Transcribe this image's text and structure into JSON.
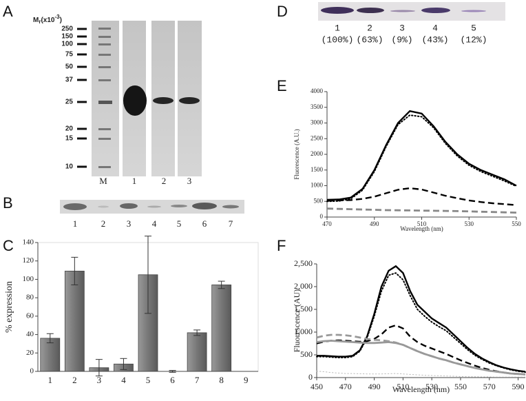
{
  "panels": [
    "A",
    "B",
    "C",
    "D",
    "E",
    "F"
  ],
  "gel_a": {
    "mr_label": {
      "main": "M",
      "sub": "r",
      "mid": "(x10",
      "sup": "-3",
      "end": ")"
    },
    "markers": [
      250,
      150,
      100,
      75,
      50,
      37,
      25,
      20,
      15,
      10
    ],
    "lanes": [
      "M",
      "1",
      "2",
      "3"
    ]
  },
  "gel_b": {
    "lanes": [
      "1",
      "2",
      "3",
      "4",
      "5",
      "6",
      "7"
    ]
  },
  "gel_d": {
    "lanes": [
      "1",
      "2",
      "3",
      "4",
      "5"
    ],
    "percents": [
      "(100%)",
      "(63%)",
      "(9%)",
      "(43%)",
      "(12%)"
    ]
  },
  "chart_data": [
    {
      "type": "bar",
      "ylabel": "% expression",
      "categories": [
        "1",
        "2",
        "3",
        "4",
        "5",
        "6",
        "7",
        "8",
        "9"
      ],
      "values": [
        36,
        109,
        4,
        8,
        105,
        0,
        42,
        94,
        null
      ],
      "errors": [
        5,
        15,
        9,
        6,
        42,
        1,
        3,
        4,
        null
      ],
      "color": "#7a7a7a",
      "ylim": [
        0,
        140
      ],
      "yticks": [
        0,
        20,
        40,
        60,
        80,
        100,
        120,
        140
      ],
      "grid": false
    },
    {
      "type": "line",
      "xlabel": "Wavelength (nm)",
      "ylabel": "Fluorescence (A.U.)",
      "x": [
        470,
        475,
        480,
        485,
        490,
        495,
        500,
        505,
        510,
        515,
        520,
        525,
        530,
        535,
        540,
        545,
        550
      ],
      "series": [
        {
          "color": "#000000",
          "style": "solid",
          "values": [
            550,
            560,
            620,
            900,
            1500,
            2300,
            3000,
            3380,
            3300,
            2900,
            2400,
            2000,
            1700,
            1500,
            1350,
            1200,
            1000
          ]
        },
        {
          "color": "#000000",
          "style": "dotted",
          "values": [
            500,
            510,
            580,
            860,
            1450,
            2250,
            2950,
            3250,
            3200,
            2850,
            2350,
            1950,
            1650,
            1450,
            1300,
            1150,
            980
          ]
        },
        {
          "color": "#000000",
          "style": "dashed",
          "values": [
            520,
            530,
            540,
            580,
            650,
            760,
            870,
            920,
            880,
            780,
            680,
            600,
            530,
            480,
            440,
            410,
            380
          ]
        },
        {
          "color": "#888888",
          "style": "dashed",
          "values": [
            270,
            260,
            250,
            240,
            230,
            220,
            215,
            210,
            205,
            200,
            195,
            190,
            180,
            170,
            160,
            150,
            140
          ]
        }
      ],
      "xlim": [
        470,
        550
      ],
      "xticks": [
        470,
        490,
        510,
        530,
        550
      ],
      "ylim": [
        0,
        4000
      ],
      "yticks": [
        0,
        500,
        1000,
        1500,
        2000,
        2500,
        3000,
        3500,
        4000
      ]
    },
    {
      "type": "line",
      "xlabel": "Wavelength (nm)",
      "ylabel": "Fluorescence (AU)",
      "x": [
        450,
        455,
        460,
        465,
        470,
        475,
        480,
        485,
        490,
        495,
        500,
        505,
        510,
        515,
        520,
        525,
        530,
        535,
        540,
        545,
        550,
        555,
        560,
        565,
        570,
        575,
        580,
        585,
        590,
        595
      ],
      "series": [
        {
          "color": "#000000",
          "style": "solid",
          "values": [
            480,
            480,
            470,
            460,
            460,
            480,
            600,
            900,
            1400,
            2000,
            2350,
            2450,
            2300,
            1900,
            1600,
            1450,
            1300,
            1200,
            1100,
            950,
            800,
            650,
            520,
            420,
            340,
            270,
            220,
            180,
            150,
            130
          ]
        },
        {
          "color": "#000000",
          "style": "dotted",
          "values": [
            460,
            460,
            450,
            440,
            440,
            460,
            580,
            870,
            1350,
            1900,
            2250,
            2300,
            2150,
            1800,
            1500,
            1350,
            1220,
            1120,
            1030,
            890,
            750,
            610,
            490,
            400,
            320,
            260,
            210,
            170,
            140,
            120
          ]
        },
        {
          "color": "#000000",
          "style": "dashed",
          "values": [
            750,
            790,
            810,
            820,
            810,
            800,
            790,
            800,
            850,
            950,
            1100,
            1150,
            1080,
            900,
            780,
            700,
            640,
            580,
            520,
            450,
            380,
            320,
            260,
            210,
            170,
            140,
            110,
            90,
            80,
            70
          ]
        },
        {
          "color": "#999999",
          "style": "dashed",
          "values": [
            880,
            920,
            940,
            940,
            930,
            910,
            880,
            850,
            830,
            820,
            800,
            770,
            720,
            650,
            580,
            520,
            470,
            420,
            380,
            330,
            290,
            250,
            210,
            180,
            150,
            130,
            110,
            90,
            80,
            70
          ]
        },
        {
          "color": "#999999",
          "style": "solid",
          "values": [
            780,
            800,
            810,
            800,
            790,
            780,
            770,
            760,
            760,
            770,
            780,
            760,
            720,
            650,
            580,
            520,
            470,
            420,
            380,
            330,
            290,
            250,
            210,
            180,
            150,
            130,
            110,
            90,
            80,
            70
          ]
        },
        {
          "color": "#bbbbbb",
          "style": "dotted",
          "values": [
            140,
            130,
            110,
            100,
            90,
            90,
            85,
            80,
            80,
            80,
            85,
            90,
            80,
            70,
            60,
            50,
            45,
            40,
            35,
            30,
            25,
            20,
            20,
            15,
            15,
            10,
            10,
            10,
            10,
            10
          ]
        }
      ],
      "xlim": [
        450,
        595
      ],
      "xticks": [
        450,
        470,
        490,
        510,
        530,
        550,
        570,
        590
      ],
      "ylim": [
        0,
        2500
      ],
      "yticks": [
        0,
        500,
        {
          "value": 1000,
          "label": "1,000"
        },
        {
          "value": 1500,
          "label": "1,500"
        },
        {
          "value": 2000,
          "label": "2,000"
        },
        {
          "value": 2500,
          "label": "2,500"
        }
      ]
    }
  ]
}
